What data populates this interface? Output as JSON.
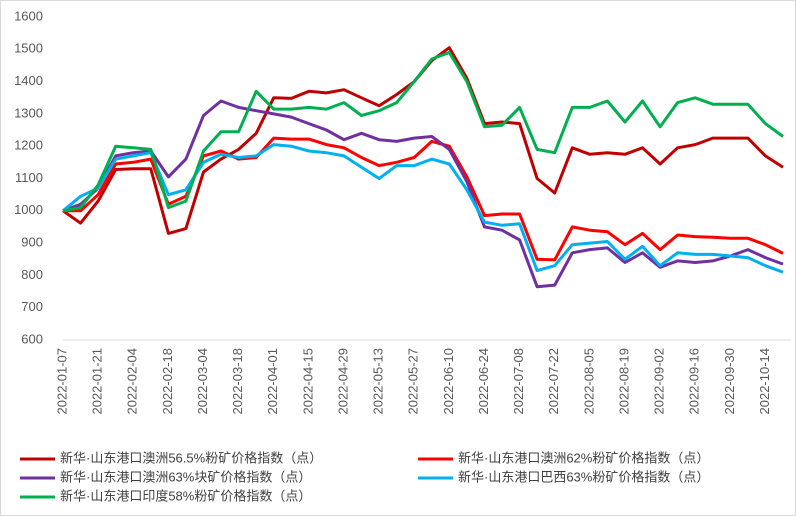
{
  "chart_data": {
    "type": "line",
    "categories": [
      "2022-01-07",
      null,
      "2022-01-21",
      null,
      "2022-02-04",
      null,
      "2022-02-18",
      null,
      "2022-03-04",
      null,
      "2022-03-18",
      null,
      "2022-04-01",
      null,
      "2022-04-15",
      null,
      "2022-04-29",
      null,
      "2022-05-13",
      null,
      "2022-05-27",
      null,
      "2022-06-10",
      null,
      "2022-06-24",
      null,
      "2022-07-08",
      null,
      "2022-07-22",
      null,
      "2022-08-05",
      null,
      "2022-08-19",
      null,
      "2022-09-02",
      null,
      "2022-09-16",
      null,
      "2022-09-30",
      null,
      "2022-10-14",
      null
    ],
    "series": [
      {
        "name": "新华·山东港口澳洲56.5%粉矿价格指数（点）",
        "color": "#c00000",
        "values": [
          1000,
          962,
          1030,
          1128,
          1130,
          1130,
          930,
          945,
          1120,
          1160,
          1190,
          1240,
          1350,
          1348,
          1370,
          1365,
          1375,
          1350,
          1325,
          1360,
          1400,
          1465,
          1505,
          1410,
          1270,
          1275,
          1270,
          1100,
          1055,
          1195,
          1175,
          1180,
          1175,
          1195,
          1145,
          1195,
          1205,
          1225,
          1225,
          1225,
          1170,
          1135
        ]
      },
      {
        "name": "新华·山东港口澳洲62%粉矿价格指数（点）",
        "color": "#ff0000",
        "values": [
          1000,
          1000,
          1050,
          1145,
          1150,
          1160,
          1020,
          1045,
          1170,
          1185,
          1160,
          1165,
          1225,
          1222,
          1222,
          1205,
          1195,
          1165,
          1140,
          1150,
          1165,
          1215,
          1200,
          1105,
          985,
          990,
          990,
          850,
          848,
          950,
          940,
          935,
          895,
          930,
          880,
          925,
          920,
          918,
          915,
          915,
          895,
          868
        ]
      },
      {
        "name": "新华·山东港口澳洲63%块矿价格指数（点）",
        "color": "#7030a0",
        "values": [
          1000,
          1020,
          1070,
          1170,
          1180,
          1185,
          1105,
          1160,
          1295,
          1340,
          1320,
          1310,
          1300,
          1290,
          1270,
          1250,
          1220,
          1240,
          1220,
          1215,
          1225,
          1230,
          1190,
          1090,
          950,
          940,
          910,
          765,
          770,
          870,
          880,
          885,
          840,
          870,
          825,
          845,
          840,
          845,
          860,
          880,
          855,
          835
        ]
      },
      {
        "name": "新华·山东港口巴西63%粉矿价格指数（点）",
        "color": "#00b0f0",
        "values": [
          1000,
          1045,
          1070,
          1160,
          1170,
          1180,
          1050,
          1065,
          1150,
          1175,
          1165,
          1170,
          1205,
          1200,
          1185,
          1180,
          1170,
          1135,
          1100,
          1140,
          1140,
          1160,
          1145,
          1065,
          965,
          955,
          960,
          815,
          830,
          895,
          900,
          905,
          850,
          890,
          830,
          870,
          865,
          865,
          860,
          855,
          830,
          810
        ]
      },
      {
        "name": "新华·山东港口印度58%粉矿价格指数（点）",
        "color": "#00b050",
        "values": [
          1000,
          1010,
          1080,
          1200,
          1195,
          1190,
          1010,
          1030,
          1185,
          1245,
          1245,
          1370,
          1315,
          1315,
          1320,
          1315,
          1335,
          1295,
          1310,
          1335,
          1400,
          1470,
          1490,
          1400,
          1260,
          1265,
          1320,
          1190,
          1180,
          1320,
          1320,
          1340,
          1275,
          1340,
          1260,
          1335,
          1350,
          1330,
          1330,
          1330,
          1270,
          1230
        ]
      }
    ],
    "ylim": [
      600,
      1600
    ],
    "yticks": [
      600,
      700,
      800,
      900,
      1000,
      1100,
      1200,
      1300,
      1400,
      1500,
      1600
    ],
    "grid": false
  }
}
